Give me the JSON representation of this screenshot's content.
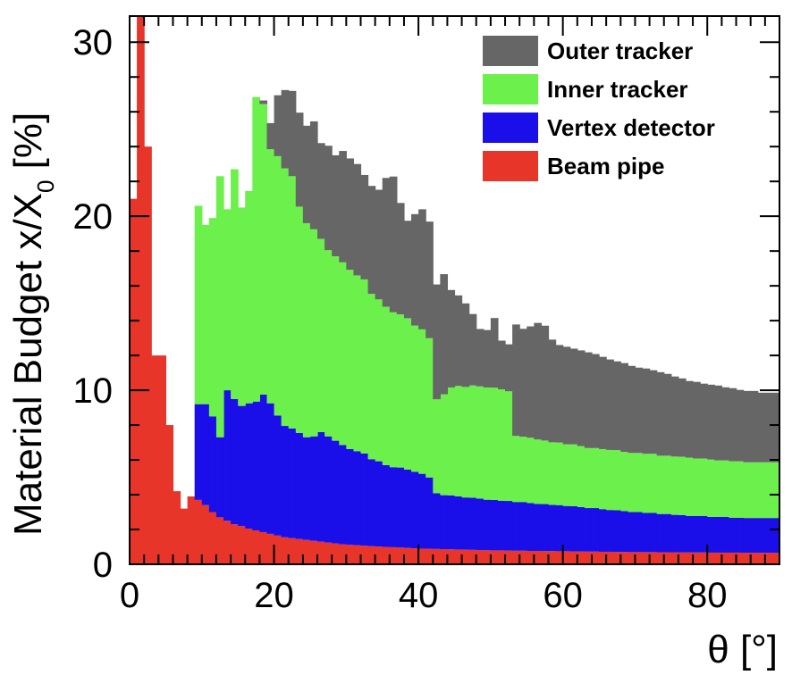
{
  "chart_data": {
    "type": "area",
    "stacked": true,
    "xlabel": "θ [°]",
    "ylabel_main": "Material Budget x/X",
    "ylabel_subscript": "0",
    "ylabel_suffix": " [%]",
    "xlim": [
      0,
      90
    ],
    "ylim": [
      0,
      31.5
    ],
    "x_ticks": [
      0,
      20,
      40,
      60,
      80
    ],
    "y_ticks": [
      0,
      10,
      20,
      30
    ],
    "grid": false,
    "legend_position": "top-right",
    "bin_edges": [
      0,
      1,
      2,
      3,
      4,
      5,
      6,
      7,
      8,
      9,
      10,
      11,
      12,
      13,
      14,
      15,
      16,
      17,
      18,
      19,
      20,
      21,
      22,
      23,
      24,
      25,
      26,
      27,
      28,
      29,
      30,
      31,
      32,
      33,
      34,
      35,
      36,
      37,
      38,
      39,
      40,
      41,
      42,
      43,
      44,
      45,
      46,
      47,
      48,
      49,
      50,
      51,
      52,
      53,
      54,
      55,
      56,
      57,
      58,
      59,
      60,
      61,
      62,
      63,
      64,
      65,
      66,
      67,
      68,
      69,
      70,
      71,
      72,
      73,
      74,
      75,
      76,
      77,
      78,
      79,
      80,
      81,
      82,
      83,
      84,
      85,
      86,
      87,
      88,
      89,
      90
    ],
    "series": [
      {
        "name": "Beam pipe",
        "color": "#e8352a",
        "values": [
          21,
          35,
          24,
          12,
          12,
          8,
          4.2,
          3.2,
          3.9,
          3.7,
          3.4,
          3.0,
          2.7,
          2.5,
          2.3,
          2.2,
          2.05,
          1.95,
          1.85,
          1.75,
          1.65,
          1.55,
          1.5,
          1.45,
          1.4,
          1.35,
          1.3,
          1.25,
          1.2,
          1.15,
          1.12,
          1.1,
          1.07,
          1.04,
          1.02,
          1.0,
          0.98,
          0.96,
          0.94,
          0.92,
          0.9,
          0.89,
          0.88,
          0.87,
          0.86,
          0.85,
          0.84,
          0.83,
          0.82,
          0.81,
          0.8,
          0.8,
          0.79,
          0.78,
          0.78,
          0.77,
          0.77,
          0.76,
          0.76,
          0.75,
          0.75,
          0.74,
          0.74,
          0.73,
          0.73,
          0.72,
          0.72,
          0.71,
          0.71,
          0.7,
          0.7,
          0.7,
          0.7,
          0.69,
          0.69,
          0.69,
          0.68,
          0.68,
          0.68,
          0.68,
          0.67,
          0.67,
          0.67,
          0.67,
          0.67,
          0.66,
          0.66,
          0.66,
          0.66,
          0.66
        ]
      },
      {
        "name": "Vertex detector",
        "color": "#1a0fe8",
        "values": [
          0,
          0,
          0,
          0,
          0,
          0,
          0,
          0,
          0,
          5.5,
          5.8,
          5.5,
          4.6,
          7.5,
          7.2,
          6.9,
          7.2,
          7.4,
          7.9,
          7.5,
          6.9,
          6.4,
          6.3,
          6.1,
          5.9,
          6.0,
          6.3,
          6.1,
          5.9,
          5.7,
          5.5,
          5.4,
          5.3,
          5.0,
          4.9,
          4.7,
          4.6,
          4.6,
          4.5,
          4.4,
          4.3,
          4.1,
          3.2,
          3.1,
          3.1,
          3.05,
          3.0,
          3.0,
          2.95,
          2.9,
          2.9,
          2.85,
          2.85,
          2.8,
          2.8,
          2.75,
          2.7,
          2.7,
          2.65,
          2.65,
          2.6,
          2.6,
          2.55,
          2.5,
          2.5,
          2.45,
          2.4,
          2.4,
          2.35,
          2.3,
          2.3,
          2.25,
          2.25,
          2.2,
          2.2,
          2.15,
          2.15,
          2.1,
          2.1,
          2.1,
          2.05,
          2.05,
          2.05,
          2.0,
          2.0,
          2.0,
          2.0,
          2.0,
          2.0,
          2.0
        ]
      },
      {
        "name": "Inner tracker",
        "color": "#6cf04b",
        "values": [
          0,
          0,
          0,
          0,
          0,
          0,
          0,
          0,
          0,
          11.4,
          10.3,
          11.4,
          15.0,
          10.4,
          13.2,
          11.4,
          12.2,
          17.5,
          16.7,
          14.6,
          14.9,
          14.8,
          14.5,
          13.0,
          12.3,
          11.9,
          11.1,
          10.7,
          10.6,
          10.5,
          10.3,
          10.1,
          10.0,
          9.5,
          9.3,
          9.1,
          8.9,
          8.8,
          8.7,
          8.4,
          8.3,
          8.0,
          5.4,
          5.8,
          6.2,
          6.35,
          6.35,
          6.45,
          6.45,
          6.45,
          6.45,
          6.4,
          6.3,
          3.8,
          3.75,
          3.75,
          3.7,
          3.65,
          3.6,
          3.6,
          3.55,
          3.55,
          3.5,
          3.45,
          3.45,
          3.45,
          3.45,
          3.45,
          3.4,
          3.4,
          3.4,
          3.4,
          3.4,
          3.35,
          3.35,
          3.35,
          3.35,
          3.35,
          3.3,
          3.3,
          3.3,
          3.25,
          3.25,
          3.25,
          3.25,
          3.2,
          3.2,
          3.2,
          3.2,
          3.2
        ]
      },
      {
        "name": "Outer tracker",
        "color": "#666666",
        "values": [
          0,
          0,
          0,
          0,
          0,
          0,
          0,
          0,
          0,
          0,
          0,
          0,
          0,
          0,
          0,
          0,
          0,
          0,
          0.2,
          1.5,
          3.5,
          4.5,
          4.9,
          5.4,
          5.6,
          6.2,
          5.5,
          6.0,
          5.8,
          6.4,
          6.4,
          6.4,
          6.0,
          6.2,
          6.3,
          7.4,
          7.8,
          6.4,
          5.6,
          6.4,
          6.9,
          6.7,
          6.6,
          6.9,
          5.6,
          5.2,
          4.8,
          4.1,
          3.3,
          3.3,
          4.0,
          2.8,
          2.7,
          6.4,
          6.2,
          6.4,
          6.7,
          6.6,
          5.9,
          5.6,
          5.6,
          5.5,
          5.5,
          5.5,
          5.4,
          5.3,
          5.2,
          5.1,
          5.1,
          5.0,
          4.9,
          4.9,
          4.8,
          4.8,
          4.7,
          4.6,
          4.5,
          4.4,
          4.4,
          4.3,
          4.3,
          4.3,
          4.2,
          4.2,
          4.1,
          4.1,
          4.1,
          4.0,
          4.0,
          4.0
        ]
      }
    ]
  }
}
